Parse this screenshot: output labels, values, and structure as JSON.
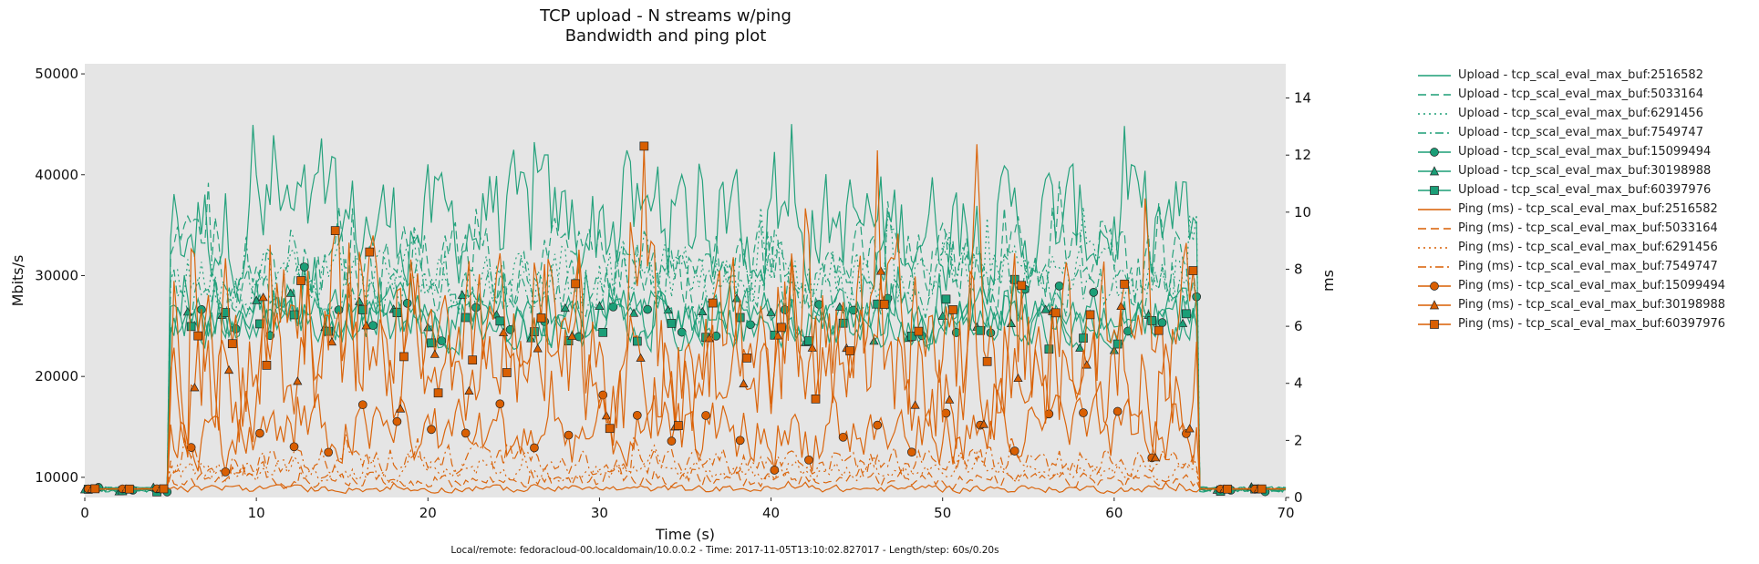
{
  "title_line1": "TCP upload - N streams w/ping",
  "title_line2": "Bandwidth and ping plot",
  "footer": "Local/remote: fedoracloud-00.localdomain/10.0.0.2 - Time: 2017-11-05T13:10:02.827017 - Length/step: 60s/0.20s",
  "colors": {
    "upload": "#1b9e77",
    "ping": "#d95f02",
    "plot_bg": "#e5e5e5"
  },
  "chart_data": {
    "type": "line",
    "title": "TCP upload - N streams w/ping\nBandwidth and ping plot",
    "xlabel": "Time (s)",
    "ylabel_left": "Mbits/s",
    "ylabel_right": "ms",
    "xlim": [
      0,
      70
    ],
    "ylim_left": [
      8000,
      51000
    ],
    "ylim_right": [
      0,
      15.2
    ],
    "x_ticks": [
      "0",
      "10",
      "20",
      "30",
      "40",
      "50",
      "60",
      "70"
    ],
    "y_ticks_left": [
      "10000",
      "20000",
      "30000",
      "40000",
      "50000"
    ],
    "y_ticks_right": [
      "0",
      "2",
      "4",
      "6",
      "8",
      "10",
      "12",
      "14"
    ],
    "grid": false,
    "legend_position": "outside-right",
    "active_range_s": [
      5,
      65
    ],
    "series": [
      {
        "name": "Upload - tcp_scal_eval_max_buf:2516582",
        "axis": "left",
        "style": "solid",
        "marker": "none",
        "idle": 8800,
        "mean": 35000,
        "amp": 9000
      },
      {
        "name": "Upload - tcp_scal_eval_max_buf:5033164",
        "axis": "left",
        "style": "dashed",
        "marker": "none",
        "idle": 8800,
        "mean": 31000,
        "amp": 6000
      },
      {
        "name": "Upload - tcp_scal_eval_max_buf:6291456",
        "axis": "left",
        "style": "dotted",
        "marker": "none",
        "idle": 8800,
        "mean": 30000,
        "amp": 5000
      },
      {
        "name": "Upload - tcp_scal_eval_max_buf:7549747",
        "axis": "left",
        "style": "dashdot",
        "marker": "none",
        "idle": 8800,
        "mean": 28500,
        "amp": 4500
      },
      {
        "name": "Upload - tcp_scal_eval_max_buf:15099494",
        "axis": "left",
        "style": "solid",
        "marker": "circle",
        "idle": 8800,
        "mean": 26000,
        "amp": 4000
      },
      {
        "name": "Upload - tcp_scal_eval_max_buf:30198988",
        "axis": "left",
        "style": "solid",
        "marker": "triangle",
        "idle": 8800,
        "mean": 25500,
        "amp": 3500
      },
      {
        "name": "Upload - tcp_scal_eval_max_buf:60397976",
        "axis": "left",
        "style": "solid",
        "marker": "square",
        "idle": 8800,
        "mean": 25000,
        "amp": 3500
      },
      {
        "name": "Ping (ms) - tcp_scal_eval_max_buf:2516582",
        "axis": "right",
        "style": "solid",
        "marker": "none",
        "idle": 0.3,
        "mean": 0.3,
        "amp": 0.2
      },
      {
        "name": "Ping (ms) - tcp_scal_eval_max_buf:5033164",
        "axis": "right",
        "style": "dashed",
        "marker": "none",
        "idle": 0.3,
        "mean": 0.6,
        "amp": 0.4
      },
      {
        "name": "Ping (ms) - tcp_scal_eval_max_buf:6291456",
        "axis": "right",
        "style": "dotted",
        "marker": "none",
        "idle": 0.3,
        "mean": 0.9,
        "amp": 0.5
      },
      {
        "name": "Ping (ms) - tcp_scal_eval_max_buf:7549747",
        "axis": "right",
        "style": "dashdot",
        "marker": "none",
        "idle": 0.3,
        "mean": 1.3,
        "amp": 0.8
      },
      {
        "name": "Ping (ms) - tcp_scal_eval_max_buf:15099494",
        "axis": "right",
        "style": "solid",
        "marker": "circle",
        "idle": 0.3,
        "mean": 2.2,
        "amp": 1.8
      },
      {
        "name": "Ping (ms) - tcp_scal_eval_max_buf:30198988",
        "axis": "right",
        "style": "solid",
        "marker": "triangle",
        "idle": 0.3,
        "mean": 4.2,
        "amp": 3.5
      },
      {
        "name": "Ping (ms) - tcp_scal_eval_max_buf:60397976",
        "axis": "right",
        "style": "solid",
        "marker": "square",
        "idle": 0.3,
        "mean": 5.5,
        "amp": 4.5
      }
    ]
  }
}
